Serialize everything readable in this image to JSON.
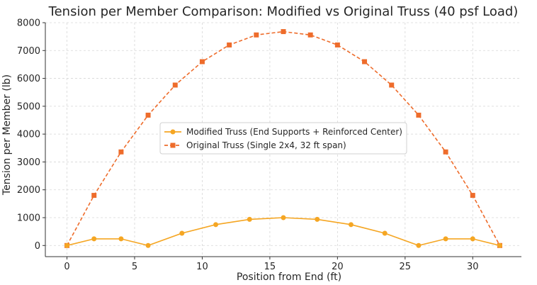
{
  "chart_data": {
    "type": "line",
    "title": "Tension per Member Comparison: Modified vs Original Truss (40 psf Load)",
    "xlabel": "Position from End (ft)",
    "ylabel": "Tension per Member (lb)",
    "xlim": [
      -1.6,
      33.6
    ],
    "ylim": [
      -400,
      8000
    ],
    "xticks": [
      0,
      5,
      10,
      15,
      20,
      25,
      30
    ],
    "yticks": [
      0,
      1000,
      2000,
      3000,
      4000,
      5000,
      6000,
      7000,
      8000
    ],
    "grid": true,
    "legend_position": "center",
    "series": [
      {
        "name": "Modified Truss (End Supports + Reinforced Center)",
        "color": "#f5a623",
        "line_style": "solid",
        "marker": "circle",
        "x": [
          0,
          2,
          4,
          6,
          8.5,
          11,
          13.5,
          16,
          18.5,
          21,
          23.5,
          26,
          28,
          30,
          32
        ],
        "y": [
          0,
          240,
          240,
          0,
          440,
          750,
          940,
          1000,
          940,
          750,
          440,
          0,
          240,
          240,
          0
        ]
      },
      {
        "name": "Original Truss (Single 2x4, 32 ft span)",
        "color": "#ee6c2b",
        "line_style": "dashed",
        "marker": "square",
        "x": [
          0,
          2,
          4,
          6,
          8,
          10,
          12,
          14,
          16,
          18,
          20,
          22,
          24,
          26,
          28,
          30,
          32
        ],
        "y": [
          0,
          1800,
          3360,
          4680,
          5760,
          6600,
          7200,
          7560,
          7680,
          7560,
          7200,
          6600,
          5760,
          4680,
          3360,
          1800,
          0
        ]
      }
    ]
  }
}
